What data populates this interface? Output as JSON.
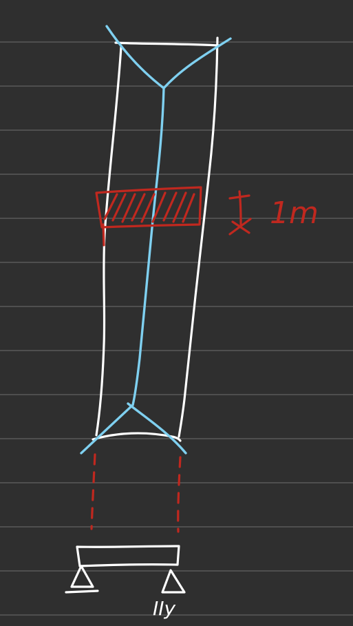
{
  "labels": {
    "strip_width": "1m",
    "support_note": "IIy"
  },
  "colors": {
    "background": "#2f2f2f",
    "ruled_lines": "#5a5a5a",
    "beam_outline": "#ffffff",
    "centerline": "#7fd0f0",
    "strip_markup": "#c0281f"
  }
}
